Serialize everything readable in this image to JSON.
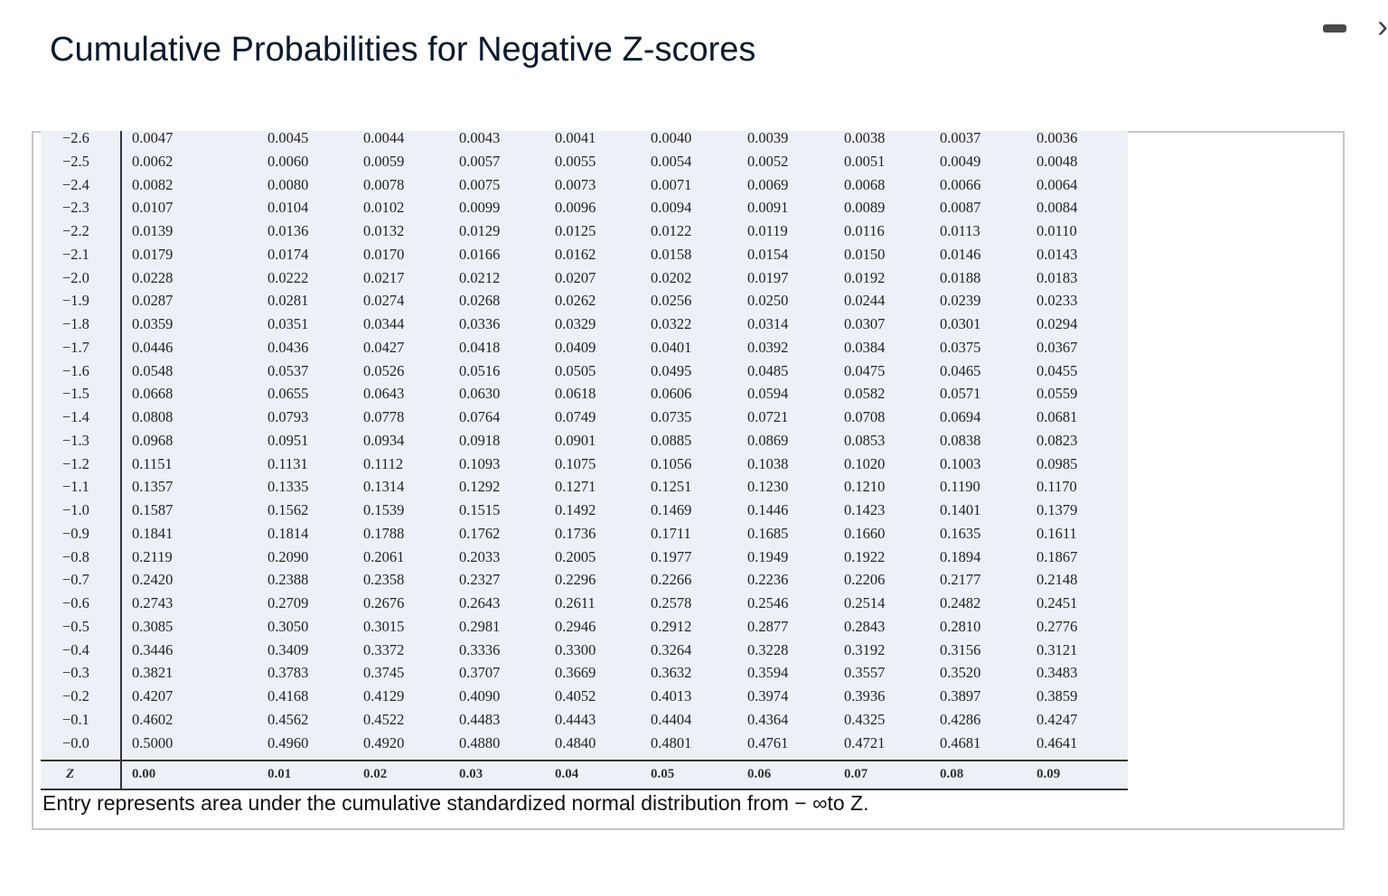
{
  "title": "Cumulative Probabilities for Negative Z-scores",
  "window_controls": {
    "minimize_icon": "minimize-icon",
    "next_icon": "chevron-right-icon"
  },
  "table": {
    "z_header": "Z",
    "columns": [
      "0.00",
      "0.01",
      "0.02",
      "0.03",
      "0.04",
      "0.05",
      "0.06",
      "0.07",
      "0.08",
      "0.09"
    ],
    "rows": [
      {
        "z": "−2.6",
        "v": [
          "0.0047",
          "0.0045",
          "0.0044",
          "0.0043",
          "0.0041",
          "0.0040",
          "0.0039",
          "0.0038",
          "0.0037",
          "0.0036"
        ]
      },
      {
        "z": "−2.5",
        "v": [
          "0.0062",
          "0.0060",
          "0.0059",
          "0.0057",
          "0.0055",
          "0.0054",
          "0.0052",
          "0.0051",
          "0.0049",
          "0.0048"
        ]
      },
      {
        "z": "−2.4",
        "v": [
          "0.0082",
          "0.0080",
          "0.0078",
          "0.0075",
          "0.0073",
          "0.0071",
          "0.0069",
          "0.0068",
          "0.0066",
          "0.0064"
        ]
      },
      {
        "z": "−2.3",
        "v": [
          "0.0107",
          "0.0104",
          "0.0102",
          "0.0099",
          "0.0096",
          "0.0094",
          "0.0091",
          "0.0089",
          "0.0087",
          "0.0084"
        ]
      },
      {
        "z": "−2.2",
        "v": [
          "0.0139",
          "0.0136",
          "0.0132",
          "0.0129",
          "0.0125",
          "0.0122",
          "0.0119",
          "0.0116",
          "0.0113",
          "0.0110"
        ]
      },
      {
        "z": "−2.1",
        "v": [
          "0.0179",
          "0.0174",
          "0.0170",
          "0.0166",
          "0.0162",
          "0.0158",
          "0.0154",
          "0.0150",
          "0.0146",
          "0.0143"
        ]
      },
      {
        "z": "−2.0",
        "v": [
          "0.0228",
          "0.0222",
          "0.0217",
          "0.0212",
          "0.0207",
          "0.0202",
          "0.0197",
          "0.0192",
          "0.0188",
          "0.0183"
        ]
      },
      {
        "z": "−1.9",
        "v": [
          "0.0287",
          "0.0281",
          "0.0274",
          "0.0268",
          "0.0262",
          "0.0256",
          "0.0250",
          "0.0244",
          "0.0239",
          "0.0233"
        ]
      },
      {
        "z": "−1.8",
        "v": [
          "0.0359",
          "0.0351",
          "0.0344",
          "0.0336",
          "0.0329",
          "0.0322",
          "0.0314",
          "0.0307",
          "0.0301",
          "0.0294"
        ]
      },
      {
        "z": "−1.7",
        "v": [
          "0.0446",
          "0.0436",
          "0.0427",
          "0.0418",
          "0.0409",
          "0.0401",
          "0.0392",
          "0.0384",
          "0.0375",
          "0.0367"
        ]
      },
      {
        "z": "−1.6",
        "v": [
          "0.0548",
          "0.0537",
          "0.0526",
          "0.0516",
          "0.0505",
          "0.0495",
          "0.0485",
          "0.0475",
          "0.0465",
          "0.0455"
        ]
      },
      {
        "z": "−1.5",
        "v": [
          "0.0668",
          "0.0655",
          "0.0643",
          "0.0630",
          "0.0618",
          "0.0606",
          "0.0594",
          "0.0582",
          "0.0571",
          "0.0559"
        ]
      },
      {
        "z": "−1.4",
        "v": [
          "0.0808",
          "0.0793",
          "0.0778",
          "0.0764",
          "0.0749",
          "0.0735",
          "0.0721",
          "0.0708",
          "0.0694",
          "0.0681"
        ]
      },
      {
        "z": "−1.3",
        "v": [
          "0.0968",
          "0.0951",
          "0.0934",
          "0.0918",
          "0.0901",
          "0.0885",
          "0.0869",
          "0.0853",
          "0.0838",
          "0.0823"
        ]
      },
      {
        "z": "−1.2",
        "v": [
          "0.1151",
          "0.1131",
          "0.1112",
          "0.1093",
          "0.1075",
          "0.1056",
          "0.1038",
          "0.1020",
          "0.1003",
          "0.0985"
        ]
      },
      {
        "z": "−1.1",
        "v": [
          "0.1357",
          "0.1335",
          "0.1314",
          "0.1292",
          "0.1271",
          "0.1251",
          "0.1230",
          "0.1210",
          "0.1190",
          "0.1170"
        ]
      },
      {
        "z": "−1.0",
        "v": [
          "0.1587",
          "0.1562",
          "0.1539",
          "0.1515",
          "0.1492",
          "0.1469",
          "0.1446",
          "0.1423",
          "0.1401",
          "0.1379"
        ]
      },
      {
        "z": "−0.9",
        "v": [
          "0.1841",
          "0.1814",
          "0.1788",
          "0.1762",
          "0.1736",
          "0.1711",
          "0.1685",
          "0.1660",
          "0.1635",
          "0.1611"
        ]
      },
      {
        "z": "−0.8",
        "v": [
          "0.2119",
          "0.2090",
          "0.2061",
          "0.2033",
          "0.2005",
          "0.1977",
          "0.1949",
          "0.1922",
          "0.1894",
          "0.1867"
        ]
      },
      {
        "z": "−0.7",
        "v": [
          "0.2420",
          "0.2388",
          "0.2358",
          "0.2327",
          "0.2296",
          "0.2266",
          "0.2236",
          "0.2206",
          "0.2177",
          "0.2148"
        ]
      },
      {
        "z": "−0.6",
        "v": [
          "0.2743",
          "0.2709",
          "0.2676",
          "0.2643",
          "0.2611",
          "0.2578",
          "0.2546",
          "0.2514",
          "0.2482",
          "0.2451"
        ]
      },
      {
        "z": "−0.5",
        "v": [
          "0.3085",
          "0.3050",
          "0.3015",
          "0.2981",
          "0.2946",
          "0.2912",
          "0.2877",
          "0.2843",
          "0.2810",
          "0.2776"
        ]
      },
      {
        "z": "−0.4",
        "v": [
          "0.3446",
          "0.3409",
          "0.3372",
          "0.3336",
          "0.3300",
          "0.3264",
          "0.3228",
          "0.3192",
          "0.3156",
          "0.3121"
        ]
      },
      {
        "z": "−0.3",
        "v": [
          "0.3821",
          "0.3783",
          "0.3745",
          "0.3707",
          "0.3669",
          "0.3632",
          "0.3594",
          "0.3557",
          "0.3520",
          "0.3483"
        ]
      },
      {
        "z": "−0.2",
        "v": [
          "0.4207",
          "0.4168",
          "0.4129",
          "0.4090",
          "0.4052",
          "0.4013",
          "0.3974",
          "0.3936",
          "0.3897",
          "0.3859"
        ]
      },
      {
        "z": "−0.1",
        "v": [
          "0.4602",
          "0.4562",
          "0.4522",
          "0.4483",
          "0.4443",
          "0.4404",
          "0.4364",
          "0.4325",
          "0.4286",
          "0.4247"
        ]
      },
      {
        "z": "−0.0",
        "v": [
          "0.5000",
          "0.4960",
          "0.4920",
          "0.4880",
          "0.4840",
          "0.4801",
          "0.4761",
          "0.4721",
          "0.4681",
          "0.4641"
        ]
      }
    ]
  },
  "footnote": "Entry represents area under the cumulative standardized normal distribution from − ∞to Z."
}
